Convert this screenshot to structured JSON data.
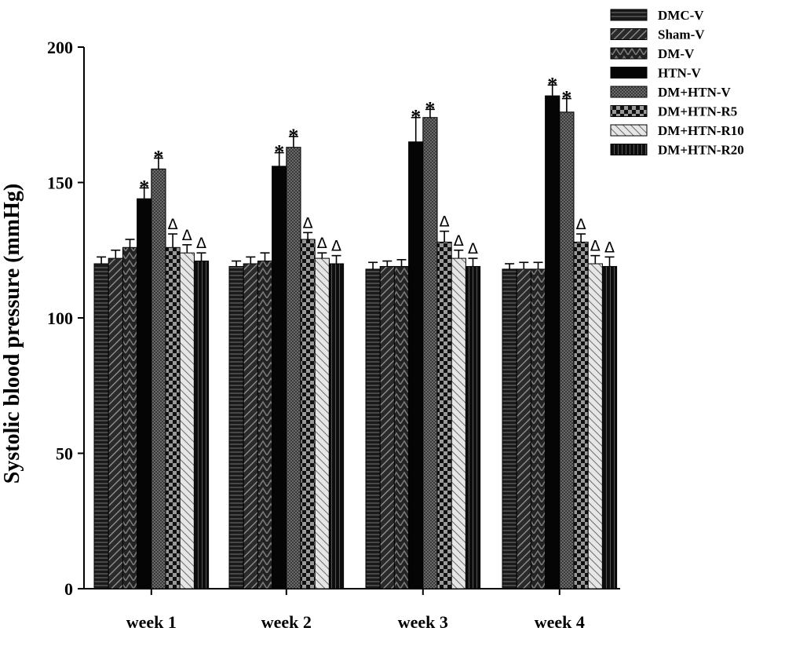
{
  "chart_data": {
    "type": "bar",
    "title": "",
    "xlabel": "",
    "ylabel": "Systolic blood pressure (mmHg)",
    "ylim": [
      0,
      200
    ],
    "yticks": [
      "0",
      "50",
      "100",
      "150",
      "200"
    ],
    "grid": false,
    "legend_position": "top-right",
    "categories": [
      "week 1",
      "week 2",
      "week 3",
      "week 4"
    ],
    "series": [
      {
        "name": "DMC-V",
        "pattern": "horizontal-lines",
        "values": [
          120,
          119,
          118,
          118
        ],
        "errors": [
          2.5,
          2,
          2.5,
          2
        ]
      },
      {
        "name": "Sham-V",
        "pattern": "diagonal-stripes",
        "values": [
          122,
          120,
          119,
          118
        ],
        "errors": [
          3,
          2.5,
          2,
          2.5
        ]
      },
      {
        "name": "DM-V",
        "pattern": "zigzag",
        "values": [
          126,
          121,
          119,
          118
        ],
        "errors": [
          3,
          3,
          2.5,
          2.5
        ]
      },
      {
        "name": "HTN-V",
        "pattern": "solid",
        "values": [
          144,
          156,
          165,
          182
        ],
        "errors": [
          4,
          5,
          9,
          4
        ],
        "marks": [
          "*",
          "*",
          "*",
          "*"
        ]
      },
      {
        "name": "DM+HTN-V",
        "pattern": "dots",
        "values": [
          155,
          163,
          174,
          176
        ],
        "errors": [
          4,
          4,
          3,
          5
        ],
        "marks": [
          "*",
          "*",
          "*",
          "*"
        ]
      },
      {
        "name": "DM+HTN-R5",
        "pattern": "checker",
        "values": [
          126,
          129,
          128,
          128
        ],
        "errors": [
          5,
          2.5,
          4,
          3
        ],
        "marks": [
          "Δ",
          "Δ",
          "Δ",
          "Δ"
        ]
      },
      {
        "name": "DM+HTN-R10",
        "pattern": "light-diagonal",
        "values": [
          124,
          122,
          122,
          120
        ],
        "errors": [
          3,
          2,
          3,
          3
        ],
        "marks": [
          "Δ",
          "Δ",
          "Δ",
          "Δ"
        ]
      },
      {
        "name": "DM+HTN-R20",
        "pattern": "vertical-lines",
        "values": [
          121,
          120,
          119,
          119
        ],
        "errors": [
          3,
          3,
          3,
          3.5
        ],
        "marks": [
          "Δ",
          "Δ",
          "Δ",
          "Δ"
        ]
      }
    ]
  }
}
